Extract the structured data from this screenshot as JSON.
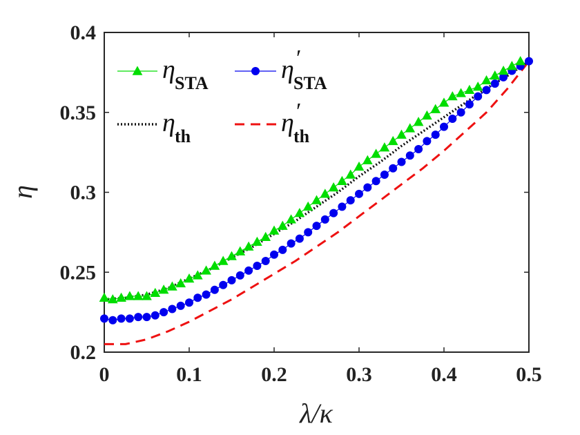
{
  "chart_data": {
    "type": "line",
    "title": "",
    "xlabel": "λ/κ",
    "ylabel": "η",
    "xlim": [
      0,
      0.5
    ],
    "ylim": [
      0.2,
      0.4
    ],
    "xticks": [
      "0",
      "0.1",
      "0.2",
      "0.3",
      "0.4",
      "0.5"
    ],
    "yticks": [
      "0.2",
      "0.25",
      "0.3",
      "0.35",
      "0.4"
    ],
    "legend_position": "top-left",
    "series": [
      {
        "name": "η_STA",
        "symbol": "η",
        "subscript": "STA",
        "prime": "",
        "color": "#00dd00",
        "style": "solid",
        "marker": "triangle",
        "x": [
          0,
          0.01,
          0.02,
          0.03,
          0.04,
          0.05,
          0.06,
          0.07,
          0.08,
          0.09,
          0.1,
          0.11,
          0.12,
          0.13,
          0.14,
          0.15,
          0.16,
          0.17,
          0.18,
          0.19,
          0.2,
          0.21,
          0.22,
          0.23,
          0.24,
          0.25,
          0.26,
          0.27,
          0.28,
          0.29,
          0.3,
          0.31,
          0.32,
          0.33,
          0.34,
          0.35,
          0.36,
          0.37,
          0.38,
          0.39,
          0.4,
          0.41,
          0.42,
          0.43,
          0.44,
          0.45,
          0.46,
          0.47,
          0.48,
          0.49
        ],
        "values": [
          0.234,
          0.233,
          0.234,
          0.235,
          0.235,
          0.235,
          0.237,
          0.239,
          0.241,
          0.243,
          0.246,
          0.248,
          0.251,
          0.254,
          0.257,
          0.26,
          0.263,
          0.266,
          0.269,
          0.272,
          0.276,
          0.279,
          0.283,
          0.287,
          0.291,
          0.295,
          0.299,
          0.303,
          0.307,
          0.311,
          0.316,
          0.32,
          0.324,
          0.328,
          0.332,
          0.336,
          0.34,
          0.344,
          0.348,
          0.352,
          0.356,
          0.36,
          0.362,
          0.364,
          0.366,
          0.37,
          0.373,
          0.376,
          0.379,
          0.382
        ]
      },
      {
        "name": "η′_STA",
        "symbol": "η",
        "subscript": "STA",
        "prime": "′",
        "color": "#0000ee",
        "style": "solid",
        "marker": "circle",
        "x": [
          0,
          0.01,
          0.02,
          0.03,
          0.04,
          0.05,
          0.06,
          0.07,
          0.08,
          0.09,
          0.1,
          0.11,
          0.12,
          0.13,
          0.14,
          0.15,
          0.16,
          0.17,
          0.18,
          0.19,
          0.2,
          0.21,
          0.22,
          0.23,
          0.24,
          0.25,
          0.26,
          0.27,
          0.28,
          0.29,
          0.3,
          0.31,
          0.32,
          0.33,
          0.34,
          0.35,
          0.36,
          0.37,
          0.38,
          0.39,
          0.4,
          0.41,
          0.42,
          0.43,
          0.44,
          0.45,
          0.46,
          0.47,
          0.48,
          0.49,
          0.5
        ],
        "values": [
          0.221,
          0.22,
          0.221,
          0.221,
          0.222,
          0.222,
          0.223,
          0.225,
          0.227,
          0.229,
          0.231,
          0.234,
          0.236,
          0.239,
          0.242,
          0.245,
          0.248,
          0.251,
          0.254,
          0.257,
          0.261,
          0.264,
          0.268,
          0.271,
          0.275,
          0.279,
          0.283,
          0.287,
          0.291,
          0.295,
          0.299,
          0.303,
          0.307,
          0.311,
          0.315,
          0.319,
          0.323,
          0.327,
          0.332,
          0.336,
          0.341,
          0.346,
          0.35,
          0.355,
          0.36,
          0.364,
          0.368,
          0.372,
          0.376,
          0.379,
          0.382
        ]
      },
      {
        "name": "η_th",
        "symbol": "η",
        "subscript": "th",
        "prime": "",
        "color": "#111111",
        "style": "dotted",
        "marker": "none",
        "x": [
          0,
          0.025,
          0.05,
          0.075,
          0.1,
          0.125,
          0.15,
          0.175,
          0.2,
          0.225,
          0.25,
          0.275,
          0.3,
          0.325,
          0.35,
          0.375,
          0.4,
          0.425,
          0.45,
          0.475,
          0.5
        ],
        "values": [
          0.233,
          0.234,
          0.236,
          0.24,
          0.246,
          0.252,
          0.259,
          0.266,
          0.274,
          0.282,
          0.291,
          0.3,
          0.31,
          0.319,
          0.329,
          0.338,
          0.347,
          0.356,
          0.365,
          0.373,
          0.382
        ]
      },
      {
        "name": "η′_th",
        "symbol": "η",
        "subscript": "th",
        "prime": "′",
        "color": "#ee1111",
        "style": "dashed",
        "marker": "none",
        "x": [
          0,
          0.025,
          0.05,
          0.075,
          0.1,
          0.125,
          0.15,
          0.175,
          0.2,
          0.225,
          0.25,
          0.275,
          0.3,
          0.325,
          0.35,
          0.375,
          0.4,
          0.425,
          0.45,
          0.475,
          0.5
        ],
        "values": [
          0.205,
          0.205,
          0.208,
          0.213,
          0.219,
          0.226,
          0.233,
          0.241,
          0.249,
          0.257,
          0.266,
          0.275,
          0.285,
          0.295,
          0.305,
          0.315,
          0.326,
          0.338,
          0.35,
          0.365,
          0.382
        ]
      }
    ]
  }
}
